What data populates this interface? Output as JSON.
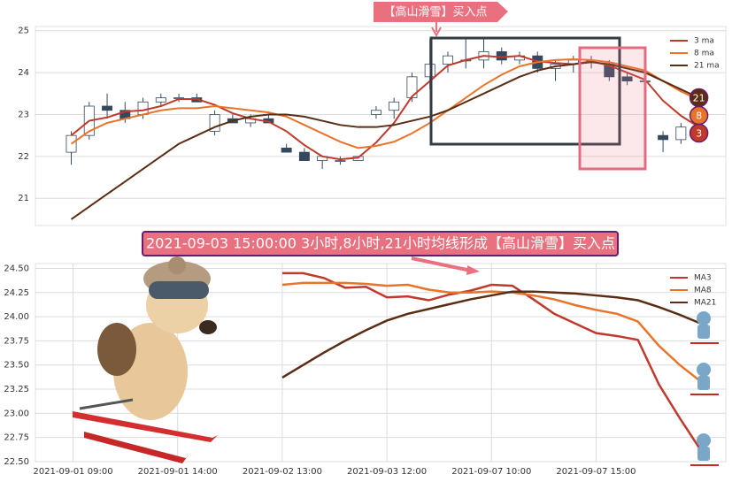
{
  "chart_data": [
    {
      "type": "candlestick",
      "annotation": "【高山滑雪】买入点",
      "ylim": [
        20.35,
        25.1
      ],
      "yticks": [
        21,
        22,
        23,
        24,
        25
      ],
      "xlim": [
        -2,
        36.5
      ],
      "grid": true,
      "legend": "upper right",
      "up_color": "#ffffff",
      "down_color": "#34495e",
      "edge_color": "#34495e",
      "open": [
        22.1,
        22.5,
        23.2,
        23.1,
        23.0,
        23.3,
        23.4,
        23.4,
        22.6,
        22.9,
        22.8,
        22.9,
        22.2,
        22.1,
        21.9,
        21.9,
        21.9,
        23.0,
        23.1,
        23.4,
        23.9,
        24.2,
        24.3,
        24.3,
        24.5,
        24.3,
        24.4,
        24.1,
        24.2,
        24.3,
        24.2,
        23.9,
        23.8,
        22.5,
        22.4,
        22.8
      ],
      "high": [
        22.6,
        23.3,
        23.5,
        23.3,
        23.4,
        23.5,
        23.5,
        23.5,
        23.1,
        23.0,
        23.0,
        23.0,
        22.3,
        22.2,
        22.0,
        22.0,
        22.0,
        23.2,
        23.4,
        24.0,
        24.8,
        24.5,
        24.8,
        24.8,
        24.6,
        24.5,
        24.5,
        24.3,
        24.4,
        24.4,
        24.3,
        24.0,
        23.9,
        22.6,
        22.8,
        23.1
      ],
      "low": [
        21.8,
        22.4,
        22.9,
        22.8,
        22.9,
        23.2,
        23.3,
        23.3,
        22.5,
        22.8,
        22.7,
        22.8,
        22.1,
        21.9,
        21.7,
        21.8,
        21.9,
        22.9,
        22.9,
        23.3,
        23.6,
        24.0,
        24.1,
        24.1,
        24.2,
        24.2,
        24.0,
        23.8,
        24.0,
        24.1,
        23.8,
        23.7,
        23.7,
        22.1,
        22.3,
        22.7
      ],
      "close": [
        22.5,
        23.2,
        23.1,
        22.9,
        23.3,
        23.4,
        23.4,
        23.3,
        23.0,
        22.8,
        22.9,
        22.8,
        22.1,
        21.9,
        22.0,
        21.9,
        22.0,
        23.1,
        23.3,
        23.9,
        24.2,
        24.4,
        24.3,
        24.5,
        24.3,
        24.4,
        24.1,
        24.2,
        24.3,
        24.3,
        23.9,
        23.8,
        23.8,
        22.4,
        22.7,
        23.0
      ],
      "series": [
        {
          "name": "3 ma",
          "tag": "3",
          "color": "#c0392b",
          "values": [
            22.5,
            22.85,
            22.93,
            23.07,
            23.1,
            23.2,
            23.37,
            23.37,
            23.23,
            23.03,
            22.9,
            22.83,
            22.6,
            22.27,
            22.0,
            21.93,
            21.97,
            22.33,
            22.8,
            23.43,
            23.8,
            24.17,
            24.3,
            24.4,
            24.37,
            24.4,
            24.27,
            24.23,
            24.2,
            24.27,
            24.17,
            24.0,
            23.83,
            23.33,
            22.97,
            22.7
          ]
        },
        {
          "name": "8 ma",
          "tag": "8",
          "color": "#e8742a",
          "values": [
            22.3,
            22.6,
            22.8,
            22.9,
            23.0,
            23.1,
            23.15,
            23.15,
            23.2,
            23.15,
            23.1,
            23.05,
            22.95,
            22.75,
            22.55,
            22.35,
            22.2,
            22.25,
            22.35,
            22.55,
            22.8,
            23.1,
            23.4,
            23.7,
            23.95,
            24.15,
            24.25,
            24.3,
            24.32,
            24.3,
            24.25,
            24.15,
            24.05,
            23.8,
            23.55,
            23.35
          ]
        },
        {
          "name": "21 ma",
          "tag": "21",
          "color": "#5a2d14",
          "values": [
            20.5,
            20.8,
            21.1,
            21.4,
            21.7,
            22.0,
            22.3,
            22.5,
            22.7,
            22.85,
            22.95,
            23.0,
            23.0,
            22.95,
            22.85,
            22.75,
            22.7,
            22.7,
            22.75,
            22.85,
            22.95,
            23.1,
            23.3,
            23.5,
            23.7,
            23.9,
            24.05,
            24.15,
            24.2,
            24.25,
            24.2,
            24.1,
            24.0,
            23.8,
            23.6,
            23.4
          ]
        }
      ]
    },
    {
      "type": "line",
      "annotation": "2021-09-03 15:00:00 3小时,8小时,21小时均线形成【高山滑雪】买入点",
      "x": [
        10,
        11,
        12,
        13,
        14,
        15,
        16,
        17,
        18,
        19,
        20,
        21,
        22,
        23,
        24,
        25,
        26,
        27,
        28,
        29,
        30
      ],
      "xlim": [
        -1.8,
        31.2
      ],
      "xticks": [
        {
          "value": 0,
          "label": "2021-09-01 09:00"
        },
        {
          "value": 5,
          "label": "2021-09-01 14:00"
        },
        {
          "value": 10,
          "label": "2021-09-02 13:00"
        },
        {
          "value": 15,
          "label": "2021-09-03 12:00"
        },
        {
          "value": 20,
          "label": "2021-09-07 10:00"
        },
        {
          "value": 25,
          "label": "2021-09-07 15:00"
        }
      ],
      "ylim": [
        22.5,
        24.55
      ],
      "yticks": [
        {
          "value": 22.5,
          "label": "22.50"
        },
        {
          "value": 22.75,
          "label": "22.75"
        },
        {
          "value": 23,
          "label": "23.00"
        },
        {
          "value": 23.25,
          "label": "23.25"
        },
        {
          "value": 23.5,
          "label": "23.50"
        },
        {
          "value": 23.75,
          "label": "23.75"
        },
        {
          "value": 24,
          "label": "24.00"
        },
        {
          "value": 24.25,
          "label": "24.25"
        },
        {
          "value": 24.5,
          "label": "24.50"
        }
      ],
      "grid": true,
      "legend": "upper right",
      "series": [
        {
          "name": "MA3",
          "color": "#c0392b",
          "values": [
            24.45,
            24.45,
            24.4,
            24.3,
            24.31,
            24.2,
            24.21,
            24.17,
            24.23,
            24.27,
            24.33,
            24.32,
            24.18,
            24.03,
            23.93,
            23.83,
            23.8,
            23.76,
            23.3,
            22.95,
            22.62
          ]
        },
        {
          "name": "MA8",
          "color": "#e8742a",
          "values": [
            24.33,
            24.35,
            24.35,
            24.35,
            24.34,
            24.32,
            24.33,
            24.28,
            24.25,
            24.25,
            24.26,
            24.25,
            24.22,
            24.18,
            24.12,
            24.07,
            24.03,
            23.95,
            23.7,
            23.5,
            23.33
          ]
        },
        {
          "name": "MA21",
          "color": "#5a2d14",
          "values": [
            23.37,
            23.5,
            23.63,
            23.75,
            23.86,
            23.96,
            24.03,
            24.08,
            24.13,
            24.18,
            24.22,
            24.26,
            24.26,
            24.25,
            24.24,
            24.22,
            24.2,
            24.17,
            24.1,
            24.02,
            23.93
          ]
        }
      ]
    }
  ]
}
